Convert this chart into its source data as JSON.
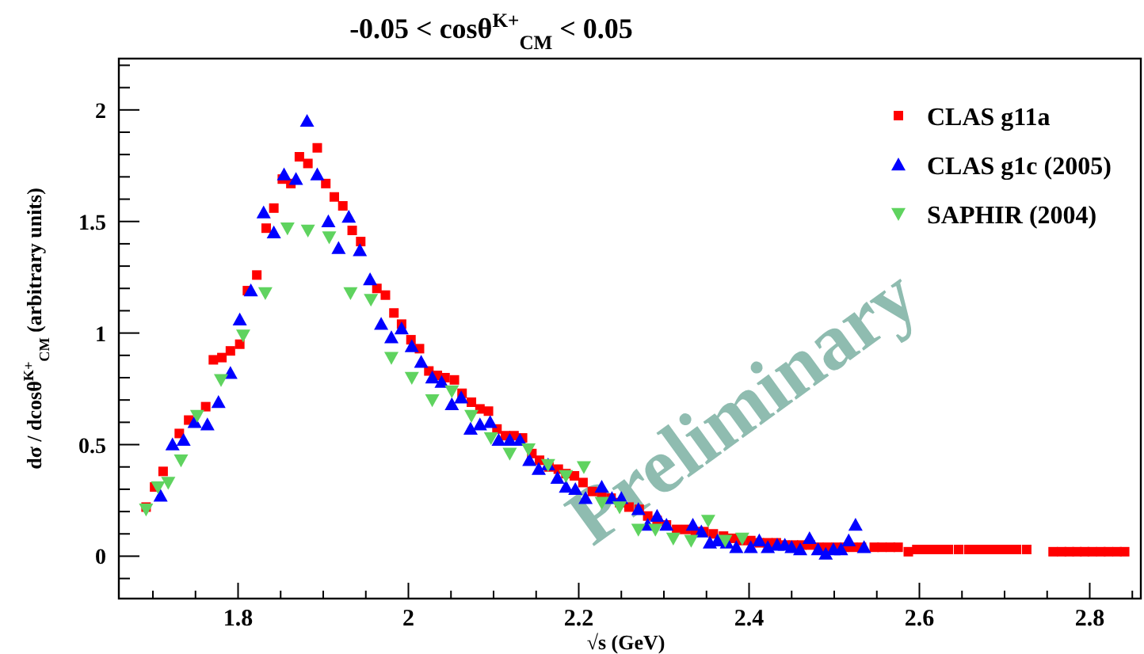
{
  "chart_data": {
    "type": "scatter",
    "title": "-0.05 < cosθ$^{K+}$$_{CM}$ < 0.05",
    "xlabel": "√s  (GeV)",
    "ylabel": "dσ / dcosθ$^{K+}$$_{CM}$ (arbitrary units)",
    "xlim": [
      1.66,
      2.86
    ],
    "ylim": [
      -0.19,
      2.23
    ],
    "xticks": [
      {
        "value": 1.7,
        "label": null
      },
      {
        "value": 1.75,
        "label": null
      },
      {
        "value": 1.8,
        "label": "1.8"
      },
      {
        "value": 1.85,
        "label": null
      },
      {
        "value": 1.9,
        "label": null
      },
      {
        "value": 1.95,
        "label": null
      },
      {
        "value": 2,
        "label": "2"
      },
      {
        "value": 2.05,
        "label": null
      },
      {
        "value": 2.1,
        "label": null
      },
      {
        "value": 2.15,
        "label": null
      },
      {
        "value": 2.2,
        "label": "2.2"
      },
      {
        "value": 2.25,
        "label": null
      },
      {
        "value": 2.3,
        "label": null
      },
      {
        "value": 2.35,
        "label": null
      },
      {
        "value": 2.4,
        "label": "2.4"
      },
      {
        "value": 2.45,
        "label": null
      },
      {
        "value": 2.5,
        "label": null
      },
      {
        "value": 2.55,
        "label": null
      },
      {
        "value": 2.6,
        "label": "2.6"
      },
      {
        "value": 2.65,
        "label": null
      },
      {
        "value": 2.7,
        "label": null
      },
      {
        "value": 2.75,
        "label": null
      },
      {
        "value": 2.8,
        "label": "2.8"
      },
      {
        "value": 2.85,
        "label": null
      }
    ],
    "yticks": [
      {
        "value": -0.1,
        "label": null
      },
      {
        "value": 0,
        "label": "0"
      },
      {
        "value": 0.1,
        "label": null
      },
      {
        "value": 0.2,
        "label": null
      },
      {
        "value": 0.3,
        "label": null
      },
      {
        "value": 0.4,
        "label": null
      },
      {
        "value": 0.5,
        "label": "0.5"
      },
      {
        "value": 0.6,
        "label": null
      },
      {
        "value": 0.7,
        "label": null
      },
      {
        "value": 0.8,
        "label": null
      },
      {
        "value": 0.9,
        "label": null
      },
      {
        "value": 1,
        "label": "1"
      },
      {
        "value": 1.1,
        "label": null
      },
      {
        "value": 1.2,
        "label": null
      },
      {
        "value": 1.3,
        "label": null
      },
      {
        "value": 1.4,
        "label": null
      },
      {
        "value": 1.5,
        "label": "1.5"
      },
      {
        "value": 1.6,
        "label": null
      },
      {
        "value": 1.7,
        "label": null
      },
      {
        "value": 1.8,
        "label": null
      },
      {
        "value": 1.9,
        "label": null
      },
      {
        "value": 2,
        "label": "2"
      },
      {
        "value": 2.1,
        "label": null
      },
      {
        "value": 2.2,
        "label": null
      }
    ],
    "legend": "top right",
    "grid": false,
    "annotations": [
      "Preliminary"
    ],
    "series": [
      {
        "name": "CLAS g11a",
        "color": "#ff0000",
        "marker": "square",
        "x": [
          1.692,
          1.702,
          1.712,
          1.731,
          1.742,
          1.762,
          1.771,
          1.781,
          1.791,
          1.802,
          1.811,
          1.822,
          1.833,
          1.842,
          1.852,
          1.862,
          1.872,
          1.882,
          1.893,
          1.903,
          1.913,
          1.923,
          1.934,
          1.944,
          1.963,
          1.973,
          1.983,
          1.992,
          2.003,
          2.013,
          2.024,
          2.034,
          2.043,
          2.054,
          2.063,
          2.074,
          2.084,
          2.094,
          2.104,
          2.114,
          2.124,
          2.134,
          2.145,
          2.154,
          2.165,
          2.176,
          2.185,
          2.195,
          2.205,
          2.216,
          2.227,
          2.238,
          2.248,
          2.259,
          2.271,
          2.281,
          2.292,
          2.303,
          2.315,
          2.326,
          2.337,
          2.347,
          2.358,
          2.37,
          2.38,
          2.391,
          2.402,
          2.412,
          2.422,
          2.432,
          2.442,
          2.452,
          2.462,
          2.472,
          2.482,
          2.492,
          2.502,
          2.512,
          2.522,
          2.532,
          2.547,
          2.556,
          2.566,
          2.575,
          2.587,
          2.597,
          2.606,
          2.615,
          2.624,
          2.634,
          2.646,
          2.658,
          2.668,
          2.677,
          2.686,
          2.696,
          2.705,
          2.714,
          2.726,
          2.757,
          2.767,
          2.776,
          2.785,
          2.794,
          2.803,
          2.813,
          2.822,
          2.832,
          2.841
        ],
        "values": [
          0.22,
          0.31,
          0.38,
          0.55,
          0.61,
          0.67,
          0.88,
          0.89,
          0.92,
          0.95,
          1.19,
          1.26,
          1.47,
          1.56,
          1.69,
          1.67,
          1.79,
          1.76,
          1.83,
          1.67,
          1.61,
          1.57,
          1.46,
          1.41,
          1.2,
          1.17,
          1.09,
          1.04,
          0.97,
          0.93,
          0.83,
          0.81,
          0.8,
          0.79,
          0.73,
          0.69,
          0.66,
          0.65,
          0.57,
          0.54,
          0.54,
          0.53,
          0.46,
          0.43,
          0.4,
          0.39,
          0.37,
          0.36,
          0.33,
          0.29,
          0.27,
          0.26,
          0.24,
          0.22,
          0.21,
          0.18,
          0.16,
          0.14,
          0.12,
          0.12,
          0.11,
          0.11,
          0.1,
          0.09,
          0.08,
          0.07,
          0.07,
          0.06,
          0.06,
          0.06,
          0.05,
          0.05,
          0.05,
          0.05,
          0.04,
          0.04,
          0.04,
          0.04,
          0.04,
          0.04,
          0.04,
          0.04,
          0.04,
          0.04,
          0.02,
          0.03,
          0.03,
          0.03,
          0.03,
          0.03,
          0.03,
          0.03,
          0.03,
          0.03,
          0.03,
          0.03,
          0.03,
          0.03,
          0.03,
          0.02,
          0.02,
          0.02,
          0.02,
          0.02,
          0.02,
          0.02,
          0.02,
          0.02,
          0.02
        ]
      },
      {
        "name": "CLAS g1c (2005)",
        "color": "#0000ff",
        "marker": "triangle",
        "x": [
          1.709,
          1.723,
          1.736,
          1.749,
          1.764,
          1.777,
          1.791,
          1.802,
          1.815,
          1.83,
          1.842,
          1.854,
          1.868,
          1.881,
          1.893,
          1.906,
          1.918,
          1.93,
          1.943,
          1.955,
          1.968,
          1.98,
          1.992,
          2.004,
          2.015,
          2.028,
          2.039,
          2.051,
          2.062,
          2.073,
          2.084,
          2.096,
          2.106,
          2.119,
          2.131,
          2.142,
          2.153,
          2.164,
          2.175,
          2.185,
          2.196,
          2.208,
          2.227,
          2.239,
          2.25,
          2.27,
          2.281,
          2.292,
          2.303,
          2.334,
          2.344,
          2.354,
          2.363,
          2.374,
          2.385,
          2.402,
          2.412,
          2.422,
          2.433,
          2.442,
          2.45,
          2.46,
          2.471,
          2.481,
          2.49,
          2.499,
          2.508,
          2.517,
          2.525,
          2.535
        ],
        "values": [
          0.27,
          0.5,
          0.52,
          0.6,
          0.59,
          0.69,
          0.82,
          1.06,
          1.19,
          1.54,
          1.45,
          1.71,
          1.69,
          1.95,
          1.71,
          1.5,
          1.38,
          1.52,
          1.37,
          1.24,
          1.04,
          0.98,
          1.02,
          0.94,
          0.87,
          0.8,
          0.78,
          0.68,
          0.71,
          0.57,
          0.59,
          0.6,
          0.52,
          0.52,
          0.52,
          0.43,
          0.39,
          0.41,
          0.35,
          0.31,
          0.3,
          0.26,
          0.31,
          0.26,
          0.26,
          0.21,
          0.14,
          0.18,
          0.14,
          0.14,
          0.11,
          0.06,
          0.07,
          0.06,
          0.04,
          0.04,
          0.07,
          0.04,
          0.05,
          0.05,
          0.04,
          0.03,
          0.08,
          0.03,
          0.01,
          0.03,
          0.03,
          0.07,
          0.14,
          0.04
        ]
      },
      {
        "name": "SAPHIR (2004)",
        "color": "#5fd35f",
        "marker": "triangle-down",
        "x": [
          1.692,
          1.706,
          1.718,
          1.733,
          1.752,
          1.78,
          1.806,
          1.832,
          1.858,
          1.882,
          1.907,
          1.932,
          1.956,
          1.98,
          2.004,
          2.028,
          2.051,
          2.074,
          2.097,
          2.119,
          2.141,
          2.164,
          2.185,
          2.206,
          2.227,
          2.248,
          2.27,
          2.29,
          2.311,
          2.332,
          2.352,
          2.372,
          2.392
        ],
        "values": [
          0.21,
          0.31,
          0.33,
          0.43,
          0.63,
          0.79,
          0.99,
          1.18,
          1.47,
          1.46,
          1.43,
          1.18,
          1.15,
          0.89,
          0.8,
          0.7,
          0.74,
          0.63,
          0.53,
          0.46,
          0.48,
          0.41,
          0.36,
          0.4,
          0.24,
          0.22,
          0.12,
          0.12,
          0.08,
          0.07,
          0.16,
          0.07,
          0.08
        ]
      }
    ]
  }
}
